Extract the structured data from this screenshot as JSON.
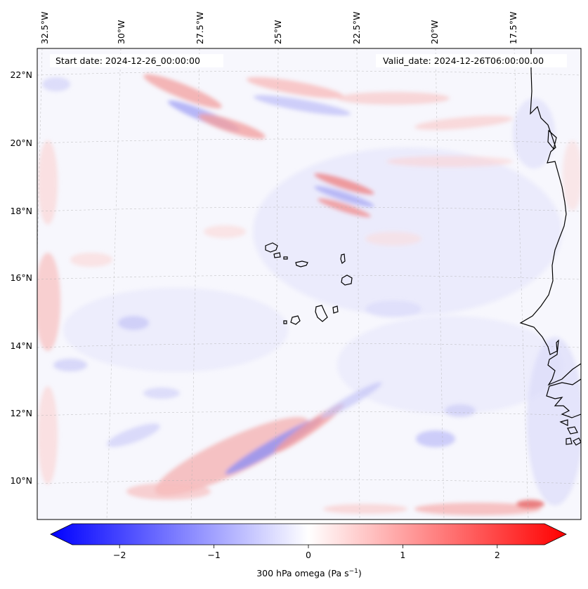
{
  "map": {
    "start_label": "Start date: 2024-12-26_00:00:00",
    "valid_label": "Valid_date: 2024-12-26T06:00:00.00",
    "lon_labels": [
      "32.5°W",
      "30°W",
      "27.5°W",
      "25°W",
      "22.5°W",
      "20°W",
      "17.5°W"
    ],
    "lat_labels": [
      "22°N",
      "20°N",
      "18°N",
      "16°N",
      "14°N",
      "12°N",
      "10°N"
    ],
    "colors": {
      "negative": "#0000ff",
      "positive": "#ff0000",
      "neutral": "#ffffff",
      "coastline": "#000000",
      "gridline": "#b0b0b0"
    }
  },
  "colorbar": {
    "ticks": [
      "−2",
      "−1",
      "0",
      "1",
      "2"
    ],
    "tick_values": [
      -2,
      -1,
      0,
      1,
      2
    ],
    "range": [
      -2.75,
      2.75
    ],
    "label_prefix": "300 hPa omega (Pa s",
    "label_exponent": "−1",
    "label_suffix": ")"
  }
}
